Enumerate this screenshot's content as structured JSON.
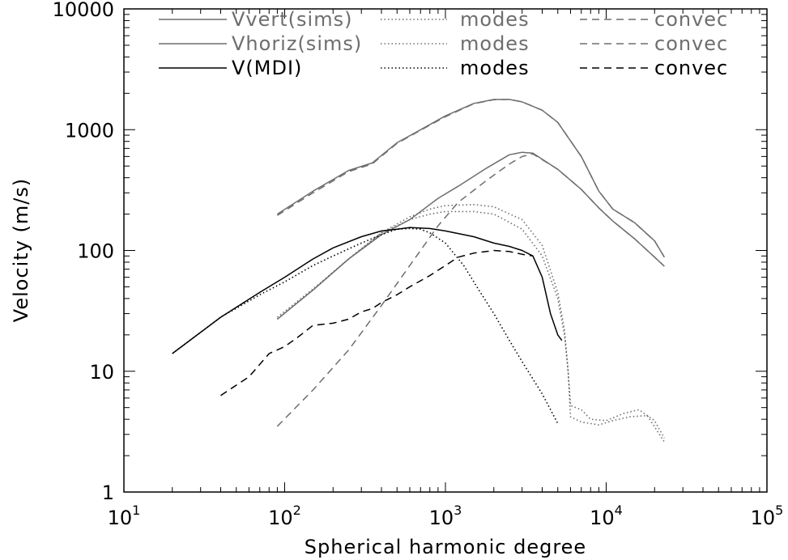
{
  "colors": {
    "sims": "#6e6e6e",
    "mdi": "#000000"
  },
  "chart_data": {
    "type": "line",
    "title": "",
    "xlabel": "Spherical harmonic degree",
    "ylabel": "Velocity (m/s)",
    "xscale": "log",
    "yscale": "log",
    "xlim": [
      10,
      100000
    ],
    "ylim": [
      1,
      10000
    ],
    "x_ticks": [
      {
        "base": "10",
        "exp": "1",
        "value": 10
      },
      {
        "base": "10",
        "exp": "2",
        "value": 100
      },
      {
        "base": "10",
        "exp": "3",
        "value": 1000
      },
      {
        "base": "10",
        "exp": "4",
        "value": 10000
      },
      {
        "base": "10",
        "exp": "5",
        "value": 100000
      }
    ],
    "y_ticks": [
      {
        "label": "1",
        "value": 1
      },
      {
        "label": "10",
        "value": 10
      },
      {
        "label": "100",
        "value": 100
      },
      {
        "label": "1000",
        "value": 1000
      },
      {
        "label": "10000",
        "value": 10000
      }
    ],
    "legend_position": "top",
    "legend": [
      {
        "label": "Vvert(sims)",
        "modes_label": "modes",
        "convec_label": "convec",
        "color": "#6e6e6e"
      },
      {
        "label": "Vhoriz(sims)",
        "modes_label": "modes",
        "convec_label": "convec",
        "color": "#6e6e6e"
      },
      {
        "label": "V(MDI)",
        "modes_label": "modes",
        "convec_label": "convec",
        "color": "#000000"
      }
    ],
    "series": [
      {
        "group": "vvert",
        "style": "solid",
        "color": "#6e6e6e",
        "points": [
          [
            90,
            200
          ],
          [
            150,
            310
          ],
          [
            250,
            460
          ],
          [
            350,
            530
          ],
          [
            500,
            780
          ],
          [
            700,
            1000
          ],
          [
            1000,
            1300
          ],
          [
            1500,
            1650
          ],
          [
            2000,
            1780
          ],
          [
            2500,
            1780
          ],
          [
            3000,
            1700
          ],
          [
            4000,
            1450
          ],
          [
            5000,
            1150
          ],
          [
            7000,
            600
          ],
          [
            9000,
            310
          ],
          [
            11000,
            220
          ],
          [
            15000,
            170
          ],
          [
            20000,
            120
          ],
          [
            23000,
            88
          ]
        ]
      },
      {
        "group": "vvert",
        "style": "dashed",
        "color": "#6e6e6e",
        "points": [
          [
            90,
            195
          ],
          [
            150,
            300
          ],
          [
            250,
            450
          ],
          [
            350,
            520
          ],
          [
            500,
            770
          ],
          [
            700,
            990
          ],
          [
            1000,
            1280
          ],
          [
            1500,
            1640
          ],
          [
            2000,
            1770
          ],
          [
            2500,
            1780
          ],
          [
            3000,
            1700
          ],
          [
            4000,
            1450
          ],
          [
            5000,
            1150
          ],
          [
            7000,
            600
          ],
          [
            9000,
            310
          ],
          [
            11000,
            220
          ],
          [
            15000,
            170
          ],
          [
            20000,
            120
          ],
          [
            23000,
            88
          ]
        ]
      },
      {
        "group": "vvert",
        "style": "dotted",
        "color": "#6e6e6e",
        "points": [
          [
            90,
            28
          ],
          [
            150,
            48
          ],
          [
            250,
            85
          ],
          [
            400,
            140
          ],
          [
            600,
            180
          ],
          [
            800,
            200
          ],
          [
            1000,
            210
          ],
          [
            1500,
            210
          ],
          [
            2000,
            200
          ],
          [
            3000,
            150
          ],
          [
            4000,
            90
          ],
          [
            5000,
            40
          ],
          [
            5500,
            20
          ],
          [
            5800,
            10
          ],
          [
            6000,
            5.2
          ],
          [
            7000,
            4.8
          ],
          [
            8000,
            4.0
          ],
          [
            10000,
            3.9
          ],
          [
            13000,
            4.5
          ],
          [
            16000,
            4.8
          ],
          [
            20000,
            3.9
          ],
          [
            23000,
            2.8
          ]
        ]
      },
      {
        "group": "vhoriz",
        "style": "solid",
        "color": "#6e6e6e",
        "points": [
          [
            90,
            27
          ],
          [
            150,
            47
          ],
          [
            250,
            85
          ],
          [
            400,
            135
          ],
          [
            600,
            180
          ],
          [
            900,
            270
          ],
          [
            1200,
            340
          ],
          [
            1800,
            480
          ],
          [
            2500,
            620
          ],
          [
            3000,
            650
          ],
          [
            3500,
            640
          ],
          [
            5000,
            470
          ],
          [
            7000,
            320
          ],
          [
            9000,
            225
          ],
          [
            11000,
            175
          ],
          [
            15000,
            125
          ],
          [
            20000,
            88
          ],
          [
            23000,
            74
          ]
        ]
      },
      {
        "group": "vhoriz",
        "style": "dashed",
        "color": "#6e6e6e",
        "points": [
          [
            90,
            3.5
          ],
          [
            150,
            7
          ],
          [
            250,
            15
          ],
          [
            400,
            35
          ],
          [
            600,
            75
          ],
          [
            900,
            160
          ],
          [
            1200,
            250
          ],
          [
            1800,
            380
          ],
          [
            2500,
            520
          ],
          [
            3000,
            600
          ],
          [
            3500,
            630
          ],
          [
            5000,
            470
          ],
          [
            7000,
            320
          ],
          [
            9000,
            225
          ],
          [
            11000,
            175
          ],
          [
            15000,
            125
          ],
          [
            20000,
            88
          ],
          [
            23000,
            74
          ]
        ]
      },
      {
        "group": "vhoriz",
        "style": "dotted",
        "color": "#6e6e6e",
        "points": [
          [
            90,
            27
          ],
          [
            150,
            47
          ],
          [
            250,
            85
          ],
          [
            400,
            140
          ],
          [
            600,
            190
          ],
          [
            800,
            220
          ],
          [
            1000,
            235
          ],
          [
            1500,
            240
          ],
          [
            2000,
            230
          ],
          [
            3000,
            180
          ],
          [
            4000,
            110
          ],
          [
            5000,
            45
          ],
          [
            5500,
            22
          ],
          [
            5800,
            10
          ],
          [
            6000,
            4.2
          ],
          [
            7000,
            3.8
          ],
          [
            9000,
            3.6
          ],
          [
            11000,
            3.9
          ],
          [
            14000,
            4.2
          ],
          [
            18000,
            4.3
          ],
          [
            23000,
            2.6
          ]
        ]
      },
      {
        "group": "mdi",
        "style": "solid",
        "color": "#000000",
        "points": [
          [
            20,
            14
          ],
          [
            40,
            28
          ],
          [
            70,
            45
          ],
          [
            100,
            60
          ],
          [
            150,
            85
          ],
          [
            200,
            105
          ],
          [
            300,
            130
          ],
          [
            400,
            145
          ],
          [
            500,
            150
          ],
          [
            600,
            155
          ],
          [
            800,
            152
          ],
          [
            1000,
            145
          ],
          [
            1500,
            130
          ],
          [
            2000,
            115
          ],
          [
            2500,
            108
          ],
          [
            3000,
            100
          ],
          [
            3500,
            90
          ],
          [
            4000,
            60
          ],
          [
            4500,
            30
          ],
          [
            5000,
            20
          ],
          [
            5300,
            18
          ]
        ]
      },
      {
        "group": "mdi",
        "style": "dotted",
        "color": "#000000",
        "points": [
          [
            20,
            14
          ],
          [
            40,
            28
          ],
          [
            70,
            43
          ],
          [
            100,
            55
          ],
          [
            150,
            75
          ],
          [
            200,
            90
          ],
          [
            300,
            115
          ],
          [
            400,
            135
          ],
          [
            500,
            150
          ],
          [
            600,
            152
          ],
          [
            700,
            150
          ],
          [
            800,
            140
          ],
          [
            1000,
            115
          ],
          [
            1300,
            75
          ],
          [
            1600,
            48
          ],
          [
            2000,
            30
          ],
          [
            2500,
            18
          ],
          [
            3000,
            12
          ],
          [
            4000,
            6.5
          ],
          [
            5000,
            3.7
          ]
        ]
      },
      {
        "group": "mdi",
        "style": "dashed",
        "color": "#000000",
        "points": [
          [
            40,
            6.3
          ],
          [
            60,
            9
          ],
          [
            80,
            14
          ],
          [
            100,
            16
          ],
          [
            120,
            19
          ],
          [
            150,
            24
          ],
          [
            200,
            25
          ],
          [
            250,
            27
          ],
          [
            300,
            31
          ],
          [
            350,
            33
          ],
          [
            400,
            37
          ],
          [
            500,
            43
          ],
          [
            600,
            50
          ],
          [
            800,
            62
          ],
          [
            1000,
            75
          ],
          [
            1200,
            88
          ],
          [
            1500,
            95
          ],
          [
            2000,
            100
          ],
          [
            2500,
            98
          ],
          [
            3000,
            93
          ],
          [
            3500,
            90
          ]
        ]
      }
    ]
  }
}
